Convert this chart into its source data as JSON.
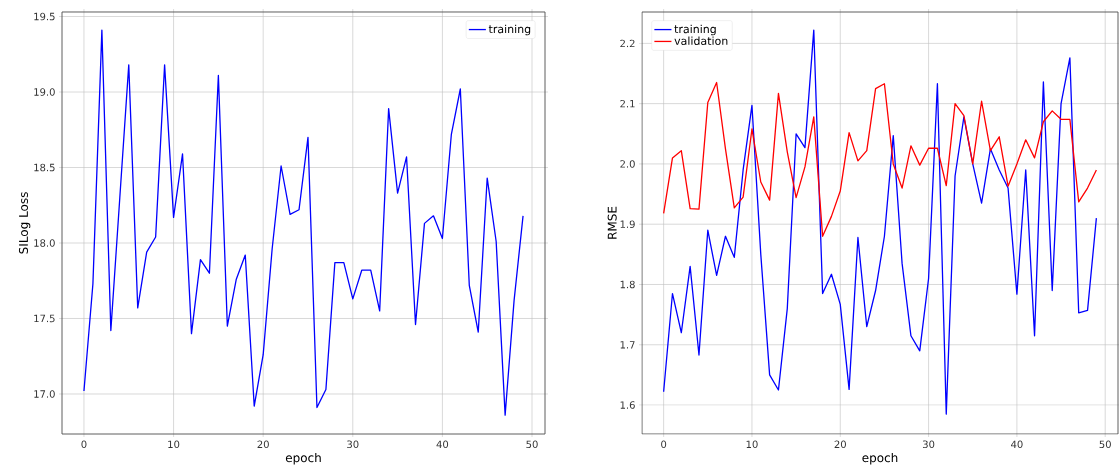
{
  "chart_data": [
    {
      "type": "line",
      "xlabel": "epoch",
      "ylabel": "SILog Loss",
      "x": [
        0,
        1,
        2,
        3,
        4,
        5,
        6,
        7,
        8,
        9,
        10,
        11,
        12,
        13,
        14,
        15,
        16,
        17,
        18,
        19,
        20,
        21,
        22,
        23,
        24,
        25,
        26,
        27,
        28,
        29,
        30,
        31,
        32,
        33,
        34,
        35,
        36,
        37,
        38,
        39,
        40,
        41,
        42,
        43,
        44,
        45,
        46,
        47,
        48,
        49
      ],
      "series": [
        {
          "name": "training",
          "color": "#0000ff",
          "values": [
            17.02,
            17.73,
            19.41,
            17.42,
            18.3,
            19.18,
            17.57,
            17.94,
            18.04,
            19.18,
            18.17,
            18.59,
            17.4,
            17.89,
            17.8,
            19.11,
            17.45,
            17.76,
            17.92,
            16.92,
            17.26,
            17.96,
            18.51,
            18.19,
            18.22,
            18.7,
            16.91,
            17.03,
            17.87,
            17.87,
            17.63,
            17.82,
            17.82,
            17.55,
            18.89,
            18.33,
            18.57,
            17.46,
            18.13,
            18.18,
            18.03,
            18.72,
            19.02,
            17.72,
            17.41,
            18.43,
            18.01,
            16.86,
            17.62,
            18.18
          ]
        }
      ],
      "xlim": [
        -2.45,
        51.45
      ],
      "ylim": [
        16.735,
        19.53
      ],
      "xticks": [
        0,
        10,
        20,
        30,
        40,
        50
      ],
      "yticks": [
        {
          "value": 17,
          "label": "17.0"
        },
        17.5,
        {
          "value": 18,
          "label": "18.0"
        },
        18.5,
        {
          "value": 19,
          "label": "19.0"
        },
        19.5
      ],
      "grid": true,
      "legend": "top right"
    },
    {
      "type": "line",
      "xlabel": "epoch",
      "ylabel": "RMSE",
      "x": [
        0,
        1,
        2,
        3,
        4,
        5,
        6,
        7,
        8,
        9,
        10,
        11,
        12,
        13,
        14,
        15,
        16,
        17,
        18,
        19,
        20,
        21,
        22,
        23,
        24,
        25,
        26,
        27,
        28,
        29,
        30,
        31,
        32,
        33,
        34,
        35,
        36,
        37,
        38,
        39,
        40,
        41,
        42,
        43,
        44,
        45,
        46,
        47,
        48,
        49
      ],
      "series": [
        {
          "name": "training",
          "color": "#0000ff",
          "values": [
            1.622,
            1.785,
            1.72,
            1.83,
            1.683,
            1.89,
            1.815,
            1.88,
            1.845,
            1.99,
            2.097,
            1.85,
            1.65,
            1.625,
            1.76,
            2.05,
            2.027,
            2.222,
            1.785,
            1.817,
            1.767,
            1.626,
            1.878,
            1.73,
            1.79,
            1.88,
            2.047,
            1.835,
            1.715,
            1.69,
            1.81,
            2.133,
            1.585,
            1.98,
            2.078,
            2.0,
            1.935,
            2.025,
            1.99,
            1.96,
            1.784,
            1.99,
            1.715,
            2.136,
            1.79,
            2.1,
            2.176,
            1.753,
            1.757,
            1.91
          ]
        },
        {
          "name": "validation",
          "color": "#ff0000",
          "values": [
            1.918,
            2.01,
            2.022,
            1.926,
            1.925,
            2.102,
            2.135,
            2.025,
            1.927,
            1.945,
            2.058,
            1.97,
            1.94,
            2.117,
            2.02,
            1.944,
            1.995,
            2.078,
            1.88,
            1.913,
            1.955,
            2.052,
            2.005,
            2.022,
            2.125,
            2.133,
            2.0,
            1.96,
            2.03,
            1.998,
            2.026,
            2.026,
            1.964,
            2.1,
            2.08,
            2.0,
            2.104,
            2.022,
            2.045,
            1.963,
            2.0,
            2.04,
            2.01,
            2.07,
            2.088,
            2.074,
            2.074,
            1.937,
            1.96,
            1.99
          ]
        }
      ],
      "xlim": [
        -2.45,
        51.45
      ],
      "ylim": [
        1.552,
        2.252
      ],
      "xticks": [
        0,
        10,
        20,
        30,
        40,
        50
      ],
      "yticks": [
        1.6,
        1.7,
        1.8,
        1.9,
        {
          "value": 2,
          "label": "2.0"
        },
        2.1,
        2.2
      ],
      "grid": true,
      "legend": "top left"
    }
  ]
}
